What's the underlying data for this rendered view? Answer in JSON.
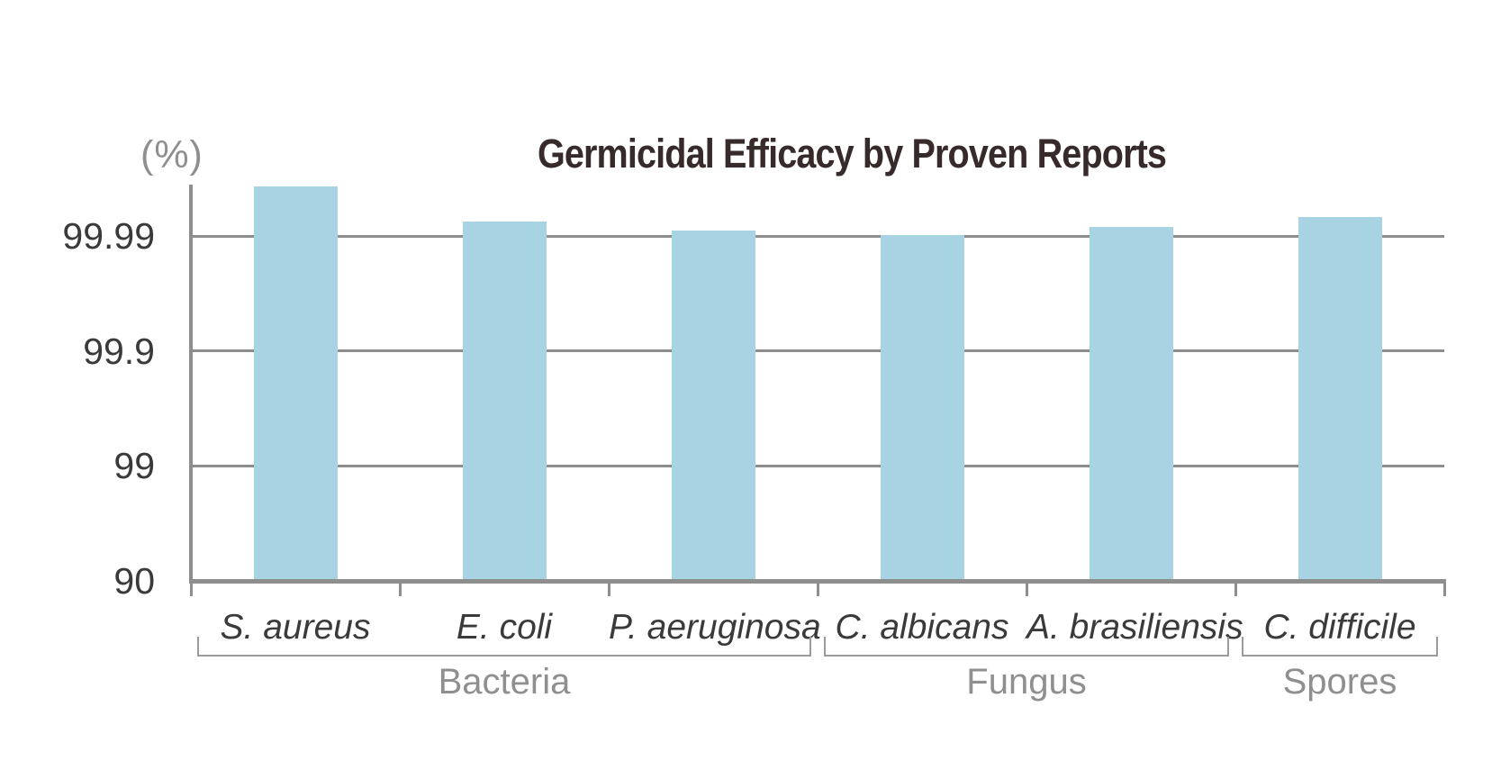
{
  "chart_data": {
    "type": "bar",
    "title": "Germicidal Efficacy by Proven Reports",
    "unit_label": "(%)",
    "categories": [
      "S. aureus",
      "E. coli",
      "P. aeruginosa",
      "C. albicans",
      "A. brasiliensis",
      "C. difficile"
    ],
    "values": [
      99.9963,
      99.9925,
      99.9911,
      99.9901,
      99.9916,
      99.9931
    ],
    "groups": [
      {
        "label": "Bacteria",
        "span": [
          0,
          3
        ]
      },
      {
        "label": "Fungus",
        "span": [
          3,
          5
        ]
      },
      {
        "label": "Spores",
        "span": [
          5,
          6
        ]
      }
    ],
    "y_ticks": [
      {
        "label": "99.99",
        "value": 99.99
      },
      {
        "label": "99.9",
        "value": 99.9
      },
      {
        "label": "99",
        "value": 99
      },
      {
        "label": "90",
        "value": 90
      }
    ],
    "scale": "log-nines",
    "ylim": [
      90,
      99.999
    ],
    "grid": true,
    "legend": "none",
    "colors": {
      "bar": "#a7d3e3",
      "axis_and_grid": "#8e8e8e",
      "title": "#372a2a",
      "tick_label": "#3a3a3a",
      "muted_label": "#8f8f8f",
      "bracket": "#9b9b9b",
      "background": "#ffffff"
    }
  }
}
